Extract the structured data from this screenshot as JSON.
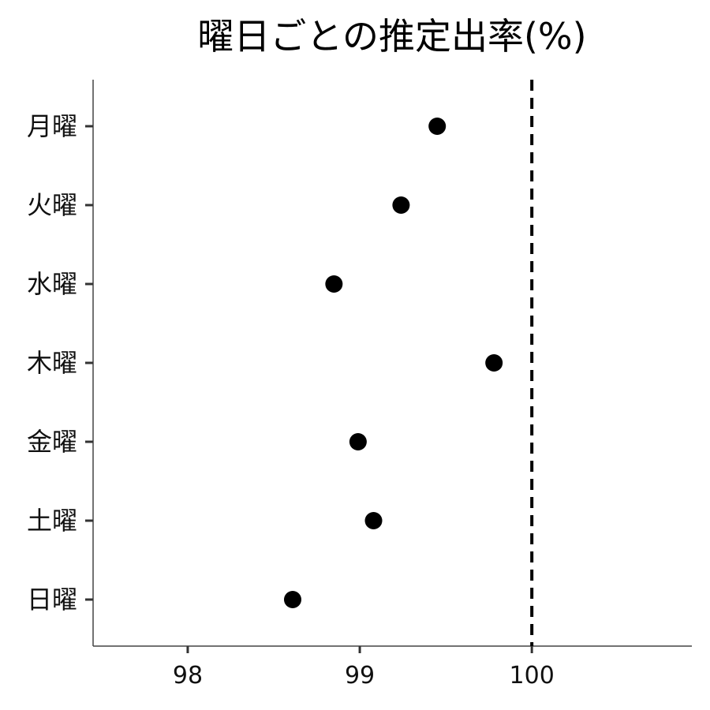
{
  "chart_data": {
    "type": "scatter",
    "title": "曜日ごとの推定出率(%)",
    "xlabel": "",
    "ylabel": "",
    "categories": [
      "月曜",
      "火曜",
      "水曜",
      "木曜",
      "金曜",
      "土曜",
      "日曜"
    ],
    "values": [
      99.45,
      99.24,
      98.85,
      99.78,
      98.99,
      99.08,
      98.61
    ],
    "x_ticks": [
      98,
      99,
      100
    ],
    "xlim": [
      97.45,
      100.93
    ],
    "reference_line": {
      "x": 100,
      "style": "dashed"
    },
    "grid": false,
    "marker_color": "#000000"
  }
}
